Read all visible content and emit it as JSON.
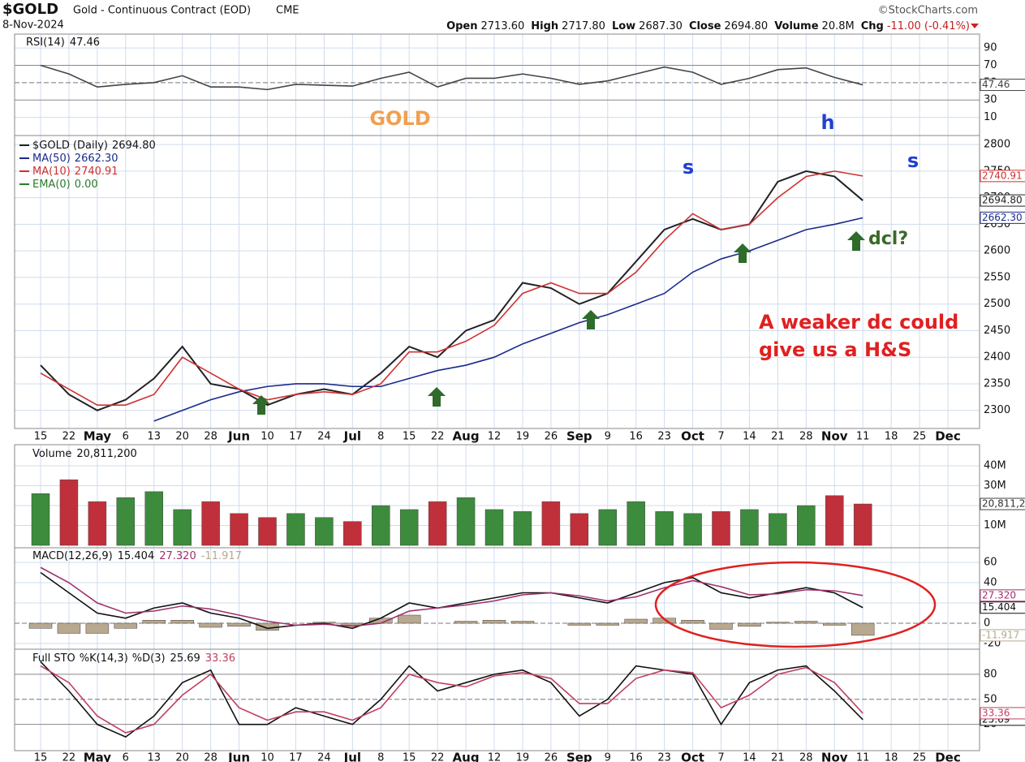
{
  "header": {
    "symbol": "$GOLD",
    "name": "Gold - Continuous Contract (EOD)",
    "exchange": "CME",
    "date": "8-Nov-2024",
    "source": "©StockCharts.com",
    "quote": [
      {
        "label": "Open",
        "value": "2713.60"
      },
      {
        "label": "High",
        "value": "2717.80"
      },
      {
        "label": "Low",
        "value": "2687.30"
      },
      {
        "label": "Close",
        "value": "2694.80"
      },
      {
        "label": "Volume",
        "value": "20.8M"
      },
      {
        "label": "Chg",
        "value": "-11.00 (-0.41%)"
      }
    ]
  },
  "chart_data": [
    {
      "type": "line",
      "series": [
        {
          "name": "RSI(14)",
          "color": "#444444",
          "values": [
            70,
            60,
            45,
            48,
            50,
            58,
            45,
            45,
            42,
            48,
            47,
            46,
            55,
            62,
            45,
            55,
            55,
            60,
            55,
            48,
            52,
            60,
            68,
            62,
            48,
            55,
            65,
            67,
            56,
            47.46,
            null,
            null,
            null
          ]
        }
      ],
      "ylim": [
        -11,
        106
      ],
      "yticks": [
        90,
        70,
        50,
        30,
        10
      ],
      "grid": true
    },
    {
      "type": "line",
      "categories": [
        "15",
        "22",
        "May",
        "6",
        "13",
        "20",
        "28",
        "Jun",
        "10",
        "17",
        "24",
        "Jul",
        "8",
        "15",
        "22",
        "Aug",
        "12",
        "19",
        "26",
        "Sep",
        "9",
        "16",
        "23",
        "Oct",
        "7",
        "14",
        "21",
        "28",
        "Nov",
        "11",
        "18",
        "25",
        "Dec"
      ],
      "series": [
        {
          "name": "$GOLD (Daily)",
          "color": "#222222",
          "values": [
            2385,
            2330,
            2300,
            2320,
            2360,
            2420,
            2350,
            2340,
            2310,
            2330,
            2340,
            2330,
            2370,
            2420,
            2400,
            2450,
            2470,
            2540,
            2530,
            2500,
            2520,
            2580,
            2640,
            2660,
            2640,
            2650,
            2730,
            2750,
            2740,
            2694.8,
            null,
            null,
            null
          ],
          "value_labels": [
            null,
            null,
            null,
            null,
            null,
            null,
            null,
            null,
            null,
            null,
            null,
            null,
            null,
            null,
            null,
            null,
            null,
            null,
            null,
            null,
            null,
            null,
            null,
            null,
            null,
            null,
            null,
            null,
            null,
            "2694.80",
            null,
            null,
            null
          ]
        },
        {
          "name": "MA(50)",
          "color": "#1a2a8a",
          "values": [
            null,
            null,
            null,
            null,
            2280,
            2300,
            2320,
            2335,
            2345,
            2350,
            2350,
            2345,
            2345,
            2360,
            2375,
            2385,
            2400,
            2425,
            2445,
            2465,
            2480,
            2500,
            2520,
            2560,
            2585,
            2600,
            2620,
            2640,
            2650,
            2662.3,
            null,
            null,
            null
          ],
          "value_labels": [
            null,
            null,
            null,
            null,
            null,
            null,
            null,
            null,
            null,
            null,
            null,
            null,
            null,
            null,
            null,
            null,
            null,
            null,
            null,
            null,
            null,
            null,
            null,
            null,
            null,
            null,
            null,
            null,
            null,
            "2662.30",
            null,
            null,
            null
          ]
        },
        {
          "name": "MA(10)",
          "color": "#d03030",
          "values": [
            2370,
            2340,
            2310,
            2310,
            2330,
            2400,
            2370,
            2340,
            2320,
            2330,
            2335,
            2330,
            2350,
            2410,
            2410,
            2430,
            2460,
            2520,
            2540,
            2520,
            2520,
            2560,
            2620,
            2670,
            2640,
            2650,
            2700,
            2740,
            2750,
            2740.91,
            null,
            null,
            null
          ]
        }
      ],
      "extra_legend": {
        "name": "EMA(0)",
        "value_label": "0.00",
        "color": "#2a7a2a"
      },
      "ylim": [
        2266,
        2817
      ],
      "yticks": [
        2300,
        2350,
        2400,
        2450,
        2500,
        2550,
        2600,
        2650,
        2700,
        2750,
        2800
      ],
      "grid": true,
      "annotations": [
        {
          "text": "GOLD",
          "color": "#f0a050"
        },
        {
          "text": "h",
          "color": "#2040d0"
        },
        {
          "text": "s",
          "color": "#2040d0"
        },
        {
          "text": "s",
          "color": "#2040d0"
        },
        {
          "text": "dcl?",
          "color": "#3a6a2a"
        },
        {
          "text": "A weaker dc could",
          "color": "#e02020"
        },
        {
          "text": "give us a H&S",
          "color": "#e02020"
        }
      ]
    },
    {
      "type": "bar",
      "up_color": "#3d8b3d",
      "down_color": "#c0303a",
      "series": [
        {
          "name": "Volume",
          "values": [
            26000000,
            33000000,
            22000000,
            24000000,
            27000000,
            18000000,
            22000000,
            16000000,
            14000000,
            16000000,
            14000000,
            12000000,
            20000000,
            18000000,
            22000000,
            24000000,
            18000000,
            17000000,
            22000000,
            16000000,
            18000000,
            22000000,
            17000000,
            16000000,
            17000000,
            18000000,
            16000000,
            20000000,
            25000000,
            20811200,
            null,
            null,
            null
          ],
          "value_labels": [
            null,
            null,
            null,
            null,
            null,
            null,
            null,
            null,
            null,
            null,
            null,
            null,
            null,
            null,
            null,
            null,
            null,
            null,
            null,
            null,
            null,
            null,
            null,
            null,
            null,
            null,
            null,
            null,
            null,
            "20,811,200",
            null,
            null,
            null
          ]
        }
      ],
      "ylim": [
        -1200000,
        50600000
      ],
      "yticks": [
        {
          "value": 40000000,
          "label": "40M"
        },
        {
          "value": 30000000,
          "label": "30M"
        },
        {
          "value": 20000000,
          "label": "20M"
        },
        {
          "value": 10000000,
          "label": "10M"
        }
      ],
      "grid": true
    },
    {
      "type": "line",
      "title": "MACD(12,26,9)",
      "series": [
        {
          "type": "bar",
          "color": "#b8a890",
          "values": [
            -5,
            -10,
            -10,
            -5,
            3,
            3,
            -4,
            -3,
            -7,
            0,
            1,
            -2,
            5,
            8,
            0,
            2,
            3,
            2,
            0,
            -2,
            -2,
            4,
            5,
            3,
            -6,
            -3,
            1,
            2,
            -2,
            -11.917,
            null,
            null,
            null
          ]
        },
        {
          "color": "#111111",
          "values": [
            50,
            30,
            10,
            5,
            15,
            20,
            10,
            5,
            -5,
            -2,
            0,
            -5,
            5,
            20,
            15,
            20,
            25,
            30,
            30,
            25,
            20,
            30,
            40,
            45,
            30,
            25,
            30,
            35,
            30,
            15.404,
            null,
            null,
            null
          ]
        },
        {
          "color": "#a0306a",
          "values": [
            55,
            40,
            20,
            10,
            12,
            17,
            14,
            8,
            2,
            -2,
            -1,
            -3,
            0,
            12,
            15,
            18,
            22,
            28,
            30,
            27,
            22,
            26,
            35,
            42,
            36,
            28,
            29,
            33,
            32,
            27.32,
            null,
            null,
            null
          ],
          "value_labels": [
            null,
            null,
            null,
            null,
            null,
            null,
            null,
            null,
            null,
            null,
            null,
            null,
            null,
            null,
            null,
            null,
            null,
            null,
            null,
            null,
            null,
            null,
            null,
            null,
            null,
            null,
            null,
            null,
            null,
            "27.320",
            null,
            null,
            null
          ]
        }
      ],
      "ylim": [
        -25.6,
        74.4
      ],
      "yticks": [
        60,
        40,
        20,
        0,
        -20
      ],
      "grid": true
    },
    {
      "type": "line",
      "title": "Full STO",
      "categories": [
        "15",
        "22",
        "May",
        "6",
        "13",
        "20",
        "28",
        "Jun",
        "10",
        "17",
        "24",
        "Jul",
        "8",
        "15",
        "22",
        "Aug",
        "12",
        "19",
        "26",
        "Sep",
        "9",
        "16",
        "23",
        "Oct",
        "7",
        "14",
        "21",
        "28",
        "Nov",
        "11",
        "18",
        "25",
        "Dec"
      ],
      "series": [
        {
          "name": "%K(14,3)",
          "color": "#111111",
          "values": [
            95,
            60,
            20,
            5,
            30,
            70,
            85,
            20,
            20,
            40,
            30,
            20,
            50,
            90,
            60,
            70,
            80,
            85,
            70,
            30,
            50,
            90,
            85,
            80,
            20,
            70,
            85,
            90,
            60,
            25.69,
            null,
            null,
            null
          ]
        },
        {
          "name": "%D(3)",
          "color": "#c04060",
          "values": [
            90,
            70,
            30,
            10,
            20,
            55,
            80,
            40,
            25,
            35,
            35,
            25,
            40,
            80,
            70,
            65,
            78,
            82,
            75,
            45,
            45,
            75,
            85,
            82,
            40,
            55,
            80,
            88,
            70,
            33.36,
            null,
            null,
            null
          ]
        }
      ],
      "ylim": [
        -11.4,
        110
      ],
      "yticks": [
        80,
        50,
        20
      ],
      "grid": true
    }
  ]
}
